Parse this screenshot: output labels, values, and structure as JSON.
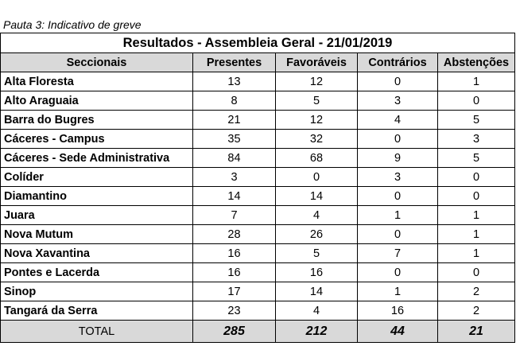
{
  "caption": "Pauta 3: Indicativo de greve",
  "table": {
    "title": "Resultados - Assembleia Geral - 21/01/2019",
    "headers": [
      "Seccionais",
      "Presentes",
      "Favoráveis",
      "Contrários",
      "Abstenções"
    ],
    "rows": [
      [
        "Alta Floresta",
        "13",
        "12",
        "0",
        "1"
      ],
      [
        "Alto Araguaia",
        "8",
        "5",
        "3",
        "0"
      ],
      [
        "Barra do Bugres",
        "21",
        "12",
        "4",
        "5"
      ],
      [
        "Cáceres - Campus",
        "35",
        "32",
        "0",
        "3"
      ],
      [
        "Cáceres - Sede Administrativa",
        "84",
        "68",
        "9",
        "5"
      ],
      [
        "Colíder",
        "3",
        "0",
        "3",
        "0"
      ],
      [
        "Diamantino",
        "14",
        "14",
        "0",
        "0"
      ],
      [
        "Juara",
        "7",
        "4",
        "1",
        "1"
      ],
      [
        "Nova Mutum",
        "28",
        "26",
        "0",
        "1"
      ],
      [
        "Nova Xavantina",
        "16",
        "5",
        "7",
        "1"
      ],
      [
        "Pontes e Lacerda",
        "16",
        "16",
        "0",
        "0"
      ],
      [
        "Sinop",
        "17",
        "14",
        "1",
        "2"
      ],
      [
        "Tangará da Serra",
        "23",
        "4",
        "16",
        "2"
      ]
    ],
    "total": [
      "TOTAL",
      "285",
      "212",
      "44",
      "21"
    ]
  }
}
